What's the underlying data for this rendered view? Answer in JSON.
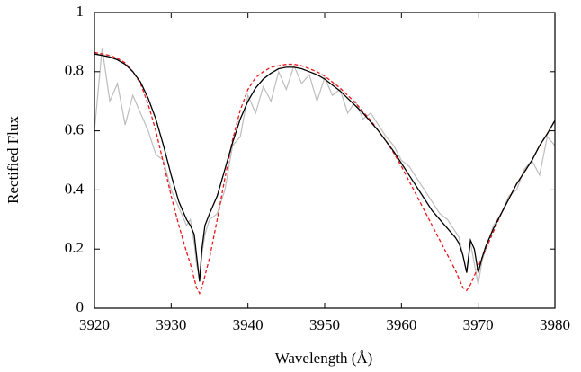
{
  "chart_data": {
    "type": "line",
    "x_label": "Wavelength (Å)",
    "y_label": "Rectified Flux",
    "x": [
      3920,
      3921,
      3922,
      3923,
      3924,
      3925,
      3926,
      3927,
      3928,
      3929,
      3930,
      3931,
      3932,
      3932.5,
      3933,
      3933.3,
      3933.7,
      3934,
      3934.4,
      3935,
      3936,
      3937,
      3938,
      3939,
      3940,
      3941,
      3942,
      3943,
      3944,
      3945,
      3946,
      3947,
      3948,
      3949,
      3950,
      3951,
      3952,
      3953,
      3954,
      3955,
      3956,
      3957,
      3958,
      3959,
      3960,
      3961,
      3962,
      3963,
      3964,
      3965,
      3966,
      3967,
      3967.5,
      3968,
      3968.5,
      3969,
      3969.5,
      3970,
      3970.5,
      3971,
      3972,
      3973,
      3974,
      3975,
      3976,
      3977,
      3978,
      3979,
      3980
    ],
    "series": [
      {
        "color": "#bdbdbd",
        "style": "solid",
        "values": [
          0.6,
          0.88,
          0.7,
          0.76,
          0.62,
          0.72,
          0.66,
          0.6,
          0.52,
          0.5,
          0.4,
          0.34,
          0.28,
          0.3,
          0.22,
          0.15,
          0.1,
          0.18,
          0.25,
          0.3,
          0.32,
          0.4,
          0.55,
          0.58,
          0.72,
          0.66,
          0.75,
          0.7,
          0.8,
          0.74,
          0.82,
          0.76,
          0.79,
          0.7,
          0.78,
          0.72,
          0.74,
          0.66,
          0.7,
          0.64,
          0.66,
          0.62,
          0.58,
          0.55,
          0.5,
          0.48,
          0.44,
          0.4,
          0.36,
          0.32,
          0.3,
          0.26,
          0.24,
          0.18,
          0.12,
          0.22,
          0.15,
          0.08,
          0.16,
          0.2,
          0.28,
          0.32,
          0.38,
          0.4,
          0.47,
          0.5,
          0.45,
          0.58,
          0.55
        ]
      },
      {
        "color": "#e8191c",
        "style": "dashed",
        "values": [
          0.865,
          0.86,
          0.855,
          0.845,
          0.83,
          0.8,
          0.76,
          0.69,
          0.6,
          0.49,
          0.38,
          0.28,
          0.19,
          0.15,
          0.1,
          0.07,
          0.05,
          0.07,
          0.11,
          0.17,
          0.3,
          0.44,
          0.57,
          0.67,
          0.74,
          0.78,
          0.8,
          0.815,
          0.82,
          0.825,
          0.825,
          0.82,
          0.81,
          0.8,
          0.785,
          0.765,
          0.745,
          0.72,
          0.695,
          0.665,
          0.635,
          0.6,
          0.565,
          0.525,
          0.48,
          0.43,
          0.38,
          0.33,
          0.28,
          0.23,
          0.18,
          0.13,
          0.1,
          0.07,
          0.06,
          0.08,
          0.11,
          0.14,
          0.17,
          0.2,
          0.26,
          0.32,
          0.37,
          0.42,
          0.46,
          0.5,
          0.55,
          0.59,
          0.635
        ]
      },
      {
        "color": "#000000",
        "style": "solid",
        "values": [
          0.86,
          0.855,
          0.85,
          0.84,
          0.825,
          0.8,
          0.765,
          0.71,
          0.64,
          0.55,
          0.45,
          0.36,
          0.3,
          0.28,
          0.25,
          0.18,
          0.09,
          0.2,
          0.28,
          0.32,
          0.38,
          0.47,
          0.56,
          0.64,
          0.7,
          0.745,
          0.775,
          0.795,
          0.81,
          0.815,
          0.815,
          0.81,
          0.8,
          0.79,
          0.775,
          0.755,
          0.735,
          0.71,
          0.685,
          0.66,
          0.63,
          0.6,
          0.565,
          0.53,
          0.49,
          0.45,
          0.41,
          0.37,
          0.33,
          0.3,
          0.27,
          0.24,
          0.22,
          0.18,
          0.12,
          0.23,
          0.2,
          0.12,
          0.17,
          0.21,
          0.27,
          0.32,
          0.37,
          0.42,
          0.46,
          0.5,
          0.55,
          0.59,
          0.635
        ]
      }
    ],
    "xlim": [
      3920,
      3980
    ],
    "xticks": [
      3920,
      3930,
      3940,
      3950,
      3960,
      3970,
      3980
    ],
    "ylim": [
      0,
      1
    ],
    "yticks": [
      0,
      0.2,
      0.4,
      0.6,
      0.8,
      1
    ],
    "grid": false
  }
}
